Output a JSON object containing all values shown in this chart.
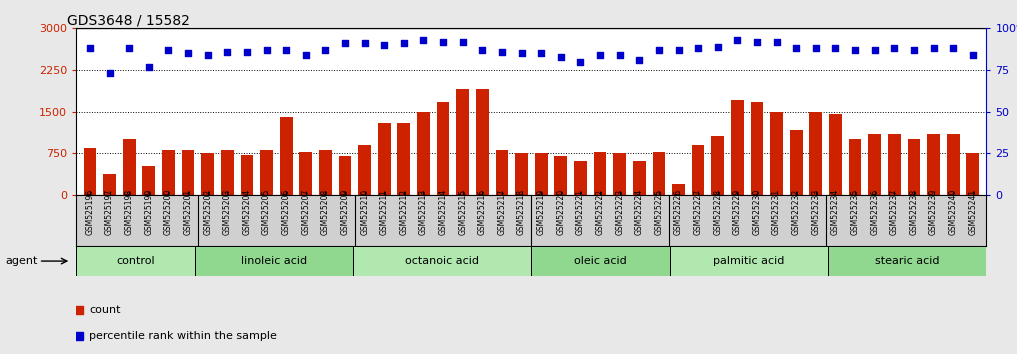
{
  "title": "GDS3648 / 15582",
  "samples": [
    "GSM525196",
    "GSM525197",
    "GSM525198",
    "GSM525199",
    "GSM525200",
    "GSM525201",
    "GSM525202",
    "GSM525203",
    "GSM525204",
    "GSM525205",
    "GSM525206",
    "GSM525207",
    "GSM525208",
    "GSM525209",
    "GSM525210",
    "GSM525211",
    "GSM525212",
    "GSM525213",
    "GSM525214",
    "GSM525215",
    "GSM525216",
    "GSM525217",
    "GSM525218",
    "GSM525219",
    "GSM525220",
    "GSM525221",
    "GSM525222",
    "GSM525223",
    "GSM525224",
    "GSM525225",
    "GSM525226",
    "GSM525227",
    "GSM525228",
    "GSM525229",
    "GSM525230",
    "GSM525231",
    "GSM525232",
    "GSM525233",
    "GSM525234",
    "GSM525235",
    "GSM525236",
    "GSM525237",
    "GSM525238",
    "GSM525239",
    "GSM525240",
    "GSM525241"
  ],
  "counts": [
    850,
    380,
    1000,
    520,
    800,
    800,
    750,
    800,
    720,
    800,
    1400,
    770,
    800,
    700,
    900,
    1300,
    1300,
    1500,
    1680,
    1900,
    1900,
    800,
    750,
    750,
    700,
    600,
    770,
    750,
    600,
    770,
    200,
    900,
    1050,
    1700,
    1680,
    1500,
    1170,
    1500,
    1450,
    1000,
    1100,
    1100,
    1000,
    1100,
    1100,
    750
  ],
  "percentiles": [
    88,
    73,
    88,
    77,
    87,
    85,
    84,
    86,
    86,
    87,
    87,
    84,
    87,
    91,
    91,
    90,
    91,
    93,
    92,
    92,
    87,
    86,
    85,
    85,
    83,
    80,
    84,
    84,
    81,
    87,
    87,
    88,
    89,
    93,
    92,
    92,
    88,
    88,
    88,
    87,
    87,
    88,
    87,
    88,
    88,
    84
  ],
  "groups": [
    {
      "label": "control",
      "start": 0,
      "end": 6
    },
    {
      "label": "linoleic acid",
      "start": 6,
      "end": 14
    },
    {
      "label": "octanoic acid",
      "start": 14,
      "end": 23
    },
    {
      "label": "oleic acid",
      "start": 23,
      "end": 30
    },
    {
      "label": "palmitic acid",
      "start": 30,
      "end": 38
    },
    {
      "label": "stearic acid",
      "start": 38,
      "end": 46
    }
  ],
  "group_dividers": [
    6,
    14,
    23,
    30,
    38
  ],
  "bar_color": "#cc2200",
  "dot_color": "#0000cc",
  "yticks_left": [
    0,
    750,
    1500,
    2250,
    3000
  ],
  "yticks_right": [
    0,
    25,
    50,
    75,
    100
  ],
  "ylim_left": [
    0,
    3000
  ],
  "ylim_right": [
    0,
    100
  ],
  "bg_color": "#e8e8e8",
  "plot_bg": "#ffffff",
  "tick_area_bg": "#d0d0d0",
  "group_colors": [
    "#b0e8b0",
    "#90d890"
  ]
}
